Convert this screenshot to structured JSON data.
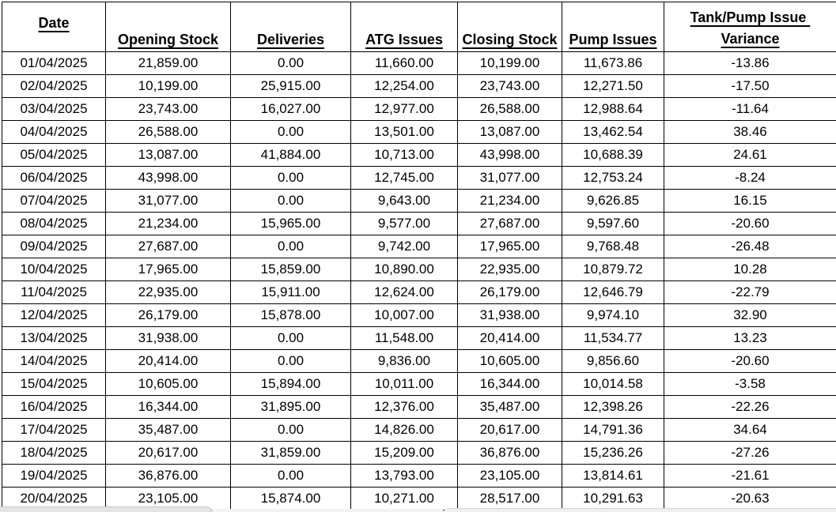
{
  "table": {
    "columns": [
      {
        "key": "date",
        "label": "Date"
      },
      {
        "key": "opening_stock",
        "label": "Opening Stock"
      },
      {
        "key": "deliveries",
        "label": "Deliveries"
      },
      {
        "key": "atg_issues",
        "label": "ATG Issues"
      },
      {
        "key": "closing_stock",
        "label": "Closing Stock"
      },
      {
        "key": "pump_issues",
        "label": "Pump Issues"
      },
      {
        "key": "variance",
        "label": "Tank/Pump Issue ",
        "label_line2": "Variance"
      }
    ],
    "rows": [
      [
        "01/04/2025",
        "21,859.00",
        "0.00",
        "11,660.00",
        "10,199.00",
        "11,673.86",
        "-13.86"
      ],
      [
        "02/04/2025",
        "10,199.00",
        "25,915.00",
        "12,254.00",
        "23,743.00",
        "12,271.50",
        "-17.50"
      ],
      [
        "03/04/2025",
        "23,743.00",
        "16,027.00",
        "12,977.00",
        "26,588.00",
        "12,988.64",
        "-11.64"
      ],
      [
        "04/04/2025",
        "26,588.00",
        "0.00",
        "13,501.00",
        "13,087.00",
        "13,462.54",
        "38.46"
      ],
      [
        "05/04/2025",
        "13,087.00",
        "41,884.00",
        "10,713.00",
        "43,998.00",
        "10,688.39",
        "24.61"
      ],
      [
        "06/04/2025",
        "43,998.00",
        "0.00",
        "12,745.00",
        "31,077.00",
        "12,753.24",
        "-8.24"
      ],
      [
        "07/04/2025",
        "31,077.00",
        "0.00",
        "9,643.00",
        "21,234.00",
        "9,626.85",
        "16.15"
      ],
      [
        "08/04/2025",
        "21,234.00",
        "15,965.00",
        "9,577.00",
        "27,687.00",
        "9,597.60",
        "-20.60"
      ],
      [
        "09/04/2025",
        "27,687.00",
        "0.00",
        "9,742.00",
        "17,965.00",
        "9,768.48",
        "-26.48"
      ],
      [
        "10/04/2025",
        "17,965.00",
        "15,859.00",
        "10,890.00",
        "22,935.00",
        "10,879.72",
        "10.28"
      ],
      [
        "11/04/2025",
        "22,935.00",
        "15,911.00",
        "12,624.00",
        "26,179.00",
        "12,646.79",
        "-22.79"
      ],
      [
        "12/04/2025",
        "26,179.00",
        "15,878.00",
        "10,007.00",
        "31,938.00",
        "9,974.10",
        "32.90"
      ],
      [
        "13/04/2025",
        "31,938.00",
        "0.00",
        "11,548.00",
        "20,414.00",
        "11,534.77",
        "13.23"
      ],
      [
        "14/04/2025",
        "20,414.00",
        "0.00",
        "9,836.00",
        "10,605.00",
        "9,856.60",
        "-20.60"
      ],
      [
        "15/04/2025",
        "10,605.00",
        "15,894.00",
        "10,011.00",
        "16,344.00",
        "10,014.58",
        "-3.58"
      ],
      [
        "16/04/2025",
        "16,344.00",
        "31,895.00",
        "12,376.00",
        "35,487.00",
        "12,398.26",
        "-22.26"
      ],
      [
        "17/04/2025",
        "35,487.00",
        "0.00",
        "14,826.00",
        "20,617.00",
        "14,791.36",
        "34.64"
      ],
      [
        "18/04/2025",
        "20,617.00",
        "31,859.00",
        "15,209.00",
        "36,876.00",
        "15,236.26",
        "-27.26"
      ],
      [
        "19/04/2025",
        "36,876.00",
        "0.00",
        "13,793.00",
        "23,105.00",
        "13,814.61",
        "-21.61"
      ],
      [
        "20/04/2025",
        "23,105.00",
        "15,874.00",
        "10,271.00",
        "28,517.00",
        "10,291.63",
        "-20.63"
      ]
    ]
  },
  "colors": {
    "grid": "#000000",
    "text": "#000000",
    "background": "#ffffff",
    "bottom_edge_left": "#e4e4e4",
    "bottom_edge_right": "#efefef"
  }
}
